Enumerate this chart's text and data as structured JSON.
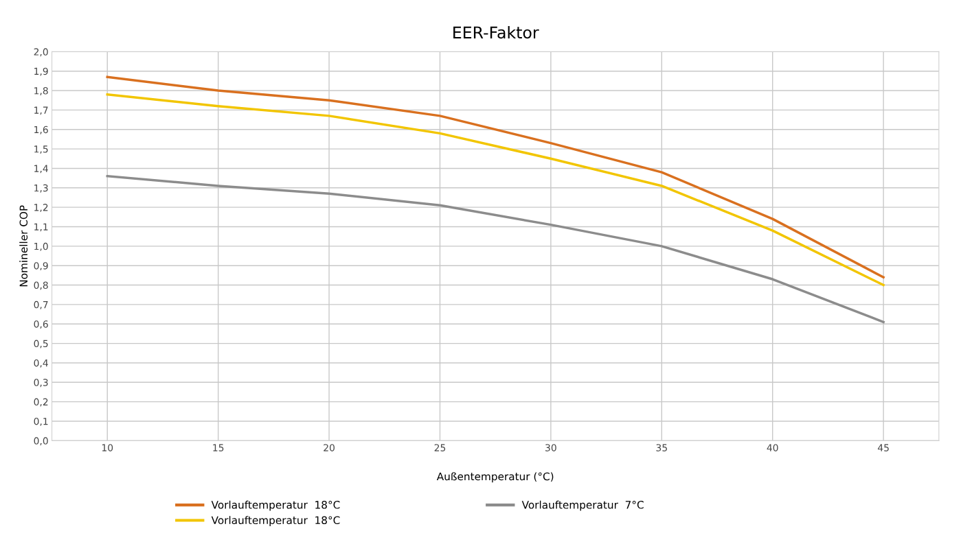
{
  "chart_data": {
    "type": "line",
    "title": "EER-Faktor",
    "xlabel": "Außentemperatur (°C)",
    "ylabel": "Nomineller COP",
    "x": [
      10,
      15,
      20,
      25,
      30,
      35,
      40,
      45
    ],
    "series": [
      {
        "name": "Vorlauftemperatur  18°C",
        "color": "#d9701f",
        "values": [
          1.87,
          1.8,
          1.75,
          1.67,
          1.53,
          1.38,
          1.14,
          0.84
        ]
      },
      {
        "name": "Vorlauftemperatur  18°C",
        "color": "#f2c500",
        "values": [
          1.78,
          1.72,
          1.67,
          1.58,
          1.45,
          1.31,
          1.08,
          0.8
        ]
      },
      {
        "name": "Vorlauftemperatur  7°C",
        "color": "#8c8c8c",
        "values": [
          1.36,
          1.31,
          1.27,
          1.21,
          1.11,
          1.0,
          0.83,
          0.61
        ]
      }
    ],
    "xlim": [
      7.5,
      47.5
    ],
    "xticks": [
      10,
      15,
      20,
      25,
      30,
      35,
      40,
      45
    ],
    "ylim": [
      0,
      2.0
    ],
    "yticks": [
      {
        "value": 0,
        "label": "0,0"
      },
      {
        "value": 0.1,
        "label": "0,1"
      },
      {
        "value": 0.2,
        "label": "0,2"
      },
      {
        "value": 0.3,
        "label": "0,3"
      },
      {
        "value": 0.4,
        "label": "0,4"
      },
      {
        "value": 0.5,
        "label": "0,5"
      },
      {
        "value": 0.6,
        "label": "0,6"
      },
      {
        "value": 0.7,
        "label": "0,7"
      },
      {
        "value": 0.8,
        "label": "0,8"
      },
      {
        "value": 0.9,
        "label": "0,9"
      },
      {
        "value": 1.0,
        "label": "1,0"
      },
      {
        "value": 1.1,
        "label": "1,1"
      },
      {
        "value": 1.2,
        "label": "1,2"
      },
      {
        "value": 1.3,
        "label": "1,3"
      },
      {
        "value": 1.4,
        "label": "1,4"
      },
      {
        "value": 1.5,
        "label": "1,5"
      },
      {
        "value": 1.6,
        "label": "1,6"
      },
      {
        "value": 1.7,
        "label": "1,7"
      },
      {
        "value": 1.8,
        "label": "1,8"
      },
      {
        "value": 1.9,
        "label": "1,9"
      },
      {
        "value": 2.0,
        "label": "2,0"
      }
    ],
    "grid": true,
    "legend": "bottom",
    "marker": "none",
    "line_style": "solid"
  }
}
